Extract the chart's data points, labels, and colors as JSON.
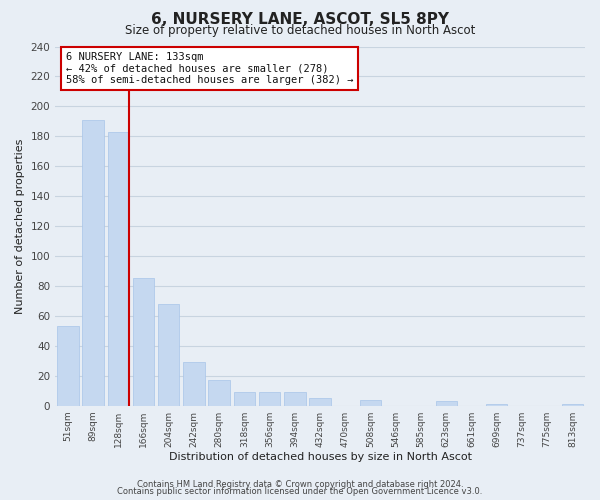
{
  "title": "6, NURSERY LANE, ASCOT, SL5 8PY",
  "subtitle": "Size of property relative to detached houses in North Ascot",
  "xlabel": "Distribution of detached houses by size in North Ascot",
  "ylabel": "Number of detached properties",
  "bar_labels": [
    "51sqm",
    "89sqm",
    "128sqm",
    "166sqm",
    "204sqm",
    "242sqm",
    "280sqm",
    "318sqm",
    "356sqm",
    "394sqm",
    "432sqm",
    "470sqm",
    "508sqm",
    "546sqm",
    "585sqm",
    "623sqm",
    "661sqm",
    "699sqm",
    "737sqm",
    "775sqm",
    "813sqm"
  ],
  "bar_values": [
    53,
    191,
    183,
    85,
    68,
    29,
    17,
    9,
    9,
    9,
    5,
    0,
    4,
    0,
    0,
    3,
    0,
    1,
    0,
    0,
    1
  ],
  "bar_color": "#c5d8f0",
  "bar_edge_color": "#a8c4e8",
  "vline_color": "#cc0000",
  "vline_x_index": 2,
  "ylim": [
    0,
    240
  ],
  "yticks": [
    0,
    20,
    40,
    60,
    80,
    100,
    120,
    140,
    160,
    180,
    200,
    220,
    240
  ],
  "annotation_title": "6 NURSERY LANE: 133sqm",
  "annotation_line1": "← 42% of detached houses are smaller (278)",
  "annotation_line2": "58% of semi-detached houses are larger (382) →",
  "annotation_box_color": "#ffffff",
  "annotation_box_edge": "#cc0000",
  "footer1": "Contains HM Land Registry data © Crown copyright and database right 2024.",
  "footer2": "Contains public sector information licensed under the Open Government Licence v3.0.",
  "background_color": "#e8eef5",
  "plot_bg_color": "#e8eef5",
  "grid_color": "#c8d4e0",
  "title_color": "#222222",
  "axis_label_color": "#222222",
  "tick_color": "#444444"
}
